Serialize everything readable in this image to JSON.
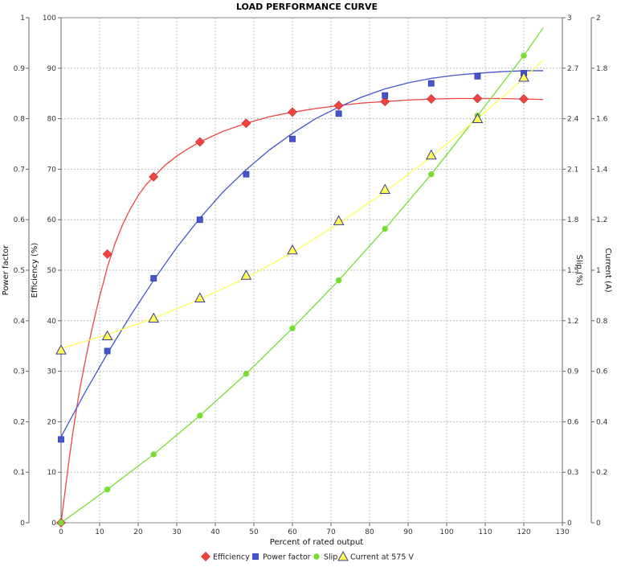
{
  "chart_data": {
    "type": "line",
    "title": "LOAD PERFORMANCE CURVE",
    "xlabel": "Percent of rated output",
    "xlim": [
      0,
      130
    ],
    "xticks": [
      "0",
      "10",
      "20",
      "30",
      "40",
      "50",
      "60",
      "70",
      "80",
      "90",
      "100",
      "110",
      "120",
      "130"
    ],
    "grid": true,
    "legend_position": "bottom",
    "axes": {
      "power_factor": {
        "label": "Power factor",
        "lim": [
          0,
          1
        ],
        "ticks": [
          "0",
          "0.1",
          "0.2",
          "0.3",
          "0.4",
          "0.5",
          "0.6",
          "0.7",
          "0.8",
          "0.9",
          "1"
        ]
      },
      "efficiency": {
        "label": "Efficiency (%)",
        "lim": [
          0,
          100
        ],
        "ticks": [
          "0",
          "10",
          "20",
          "30",
          "40",
          "50",
          "60",
          "70",
          "80",
          "90",
          "100"
        ]
      },
      "slip": {
        "label": "Slip (%)",
        "lim": [
          0,
          3
        ],
        "ticks": [
          "0",
          "0.3",
          "0.6",
          "0.9",
          "1.2",
          "1.5",
          "1.8",
          "2.1",
          "2.4",
          "2.7",
          "3"
        ]
      },
      "current": {
        "label": "Current (A)",
        "lim": [
          0,
          2
        ],
        "ticks": [
          "0",
          "0.2",
          "0.4",
          "0.6",
          "0.8",
          "1",
          "1.2",
          "1.4",
          "1.6",
          "1.8",
          "2"
        ]
      }
    },
    "series": [
      {
        "name": "Efficiency",
        "axis": "efficiency",
        "color": "#ee4444",
        "marker": "diamond",
        "points": [
          [
            0,
            0
          ],
          [
            12,
            53.2
          ],
          [
            24,
            68.5
          ],
          [
            36,
            75.4
          ],
          [
            48,
            79.1
          ],
          [
            60,
            81.3
          ],
          [
            72,
            82.6
          ],
          [
            84,
            83.4
          ],
          [
            96,
            83.9
          ],
          [
            108,
            84
          ],
          [
            120,
            83.9
          ]
        ],
        "curve": [
          [
            0,
            0
          ],
          [
            1,
            6
          ],
          [
            2,
            12
          ],
          [
            3,
            17.5
          ],
          [
            4,
            22.5
          ],
          [
            5,
            27
          ],
          [
            6,
            31
          ],
          [
            7,
            34.8
          ],
          [
            8,
            38.3
          ],
          [
            9,
            41.6
          ],
          [
            10,
            44.8
          ],
          [
            11,
            47.6
          ],
          [
            12,
            50.6
          ],
          [
            14,
            55.3
          ],
          [
            16,
            59.1
          ],
          [
            18,
            62.2
          ],
          [
            20,
            64.8
          ],
          [
            22,
            66.9
          ],
          [
            24,
            68.5
          ],
          [
            27,
            70.8
          ],
          [
            30,
            72.6
          ],
          [
            33,
            74.1
          ],
          [
            36,
            75.4
          ],
          [
            42,
            77.5
          ],
          [
            48,
            79.1
          ],
          [
            54,
            80.4
          ],
          [
            60,
            81.3
          ],
          [
            66,
            82
          ],
          [
            72,
            82.6
          ],
          [
            78,
            83.1
          ],
          [
            84,
            83.4
          ],
          [
            90,
            83.7
          ],
          [
            96,
            83.9
          ],
          [
            102,
            84
          ],
          [
            108,
            84
          ],
          [
            114,
            84
          ],
          [
            120,
            83.9
          ],
          [
            125,
            83.8
          ]
        ]
      },
      {
        "name": "Power factor",
        "axis": "power_factor",
        "color": "#4455cc",
        "marker": "square",
        "points": [
          [
            0,
            0.165
          ],
          [
            12,
            0.34
          ],
          [
            24,
            0.484
          ],
          [
            36,
            0.6
          ],
          [
            48,
            0.69
          ],
          [
            60,
            0.76
          ],
          [
            72,
            0.81
          ],
          [
            84,
            0.846
          ],
          [
            96,
            0.87
          ],
          [
            108,
            0.884
          ],
          [
            120,
            0.89
          ]
        ],
        "curve": [
          [
            0,
            0.17
          ],
          [
            6,
            0.255
          ],
          [
            12,
            0.335
          ],
          [
            18,
            0.41
          ],
          [
            24,
            0.48
          ],
          [
            30,
            0.545
          ],
          [
            36,
            0.603
          ],
          [
            42,
            0.655
          ],
          [
            48,
            0.699
          ],
          [
            54,
            0.738
          ],
          [
            60,
            0.771
          ],
          [
            66,
            0.8
          ],
          [
            72,
            0.823
          ],
          [
            78,
            0.843
          ],
          [
            84,
            0.859
          ],
          [
            90,
            0.871
          ],
          [
            96,
            0.88
          ],
          [
            102,
            0.886
          ],
          [
            108,
            0.89
          ],
          [
            114,
            0.893
          ],
          [
            120,
            0.895
          ],
          [
            125,
            0.895
          ]
        ]
      },
      {
        "name": "Slip",
        "axis": "slip",
        "color": "#77dd33",
        "marker": "circle",
        "points": [
          [
            0,
            0
          ],
          [
            12,
            0.198
          ],
          [
            24,
            0.406
          ],
          [
            36,
            0.636
          ],
          [
            48,
            0.885
          ],
          [
            60,
            1.155
          ],
          [
            72,
            1.44
          ],
          [
            84,
            1.746
          ],
          [
            96,
            2.07
          ],
          [
            108,
            2.418
          ],
          [
            120,
            2.775
          ]
        ],
        "curve": [
          [
            0,
            0
          ],
          [
            12,
            0.198
          ],
          [
            24,
            0.406
          ],
          [
            36,
            0.636
          ],
          [
            48,
            0.885
          ],
          [
            60,
            1.155
          ],
          [
            72,
            1.44
          ],
          [
            84,
            1.746
          ],
          [
            96,
            2.07
          ],
          [
            108,
            2.418
          ],
          [
            120,
            2.775
          ],
          [
            125,
            2.94
          ]
        ]
      },
      {
        "name": "Current at 575 V",
        "axis": "current",
        "color": "#ffff55",
        "marker": "triangle",
        "points": [
          [
            0,
            0.684
          ],
          [
            12,
            0.74
          ],
          [
            24,
            0.81
          ],
          [
            36,
            0.89
          ],
          [
            48,
            0.98
          ],
          [
            60,
            1.08
          ],
          [
            72,
            1.196
          ],
          [
            84,
            1.32
          ],
          [
            96,
            1.456
          ],
          [
            108,
            1.6
          ],
          [
            120,
            1.764
          ]
        ],
        "curve": [
          [
            0,
            0.69
          ],
          [
            12,
            0.745
          ],
          [
            24,
            0.81
          ],
          [
            36,
            0.885
          ],
          [
            48,
            0.97
          ],
          [
            60,
            1.07
          ],
          [
            72,
            1.185
          ],
          [
            84,
            1.31
          ],
          [
            96,
            1.45
          ],
          [
            108,
            1.6
          ],
          [
            120,
            1.76
          ],
          [
            125,
            1.832
          ]
        ]
      }
    ]
  }
}
